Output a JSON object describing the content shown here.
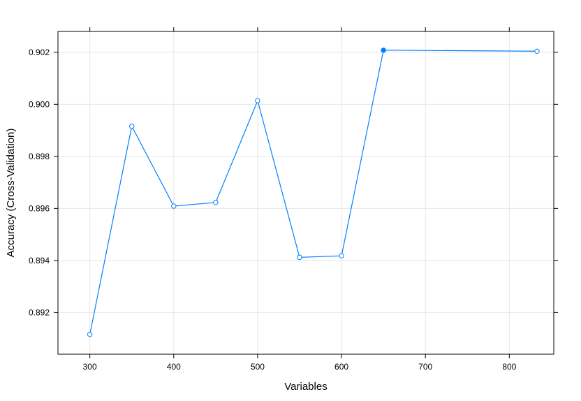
{
  "chart_data": {
    "type": "line",
    "xlabel": "Variables",
    "ylabel": "Accuracy (Cross-Validation)",
    "xlim": [
      262,
      853
    ],
    "ylim": [
      0.8904,
      0.9028
    ],
    "x_ticks": [
      300,
      400,
      500,
      600,
      700,
      800
    ],
    "y_ticks": [
      0.892,
      0.894,
      0.896,
      0.898,
      0.9,
      0.902
    ],
    "x_tick_labels": [
      "300",
      "400",
      "500",
      "600",
      "700",
      "800"
    ],
    "y_tick_labels": [
      "0.892",
      "0.894",
      "0.896",
      "0.898",
      "0.900",
      "0.902"
    ],
    "grid": true,
    "series": [
      {
        "color": "#0080ff",
        "x": [
          300,
          350,
          400,
          450,
          500,
          550,
          600,
          650,
          833
        ],
        "y": [
          0.89116,
          0.89916,
          0.89609,
          0.89623,
          0.90014,
          0.89412,
          0.89418,
          0.90208,
          0.90204
        ],
        "highlight_index": 7
      }
    ]
  }
}
